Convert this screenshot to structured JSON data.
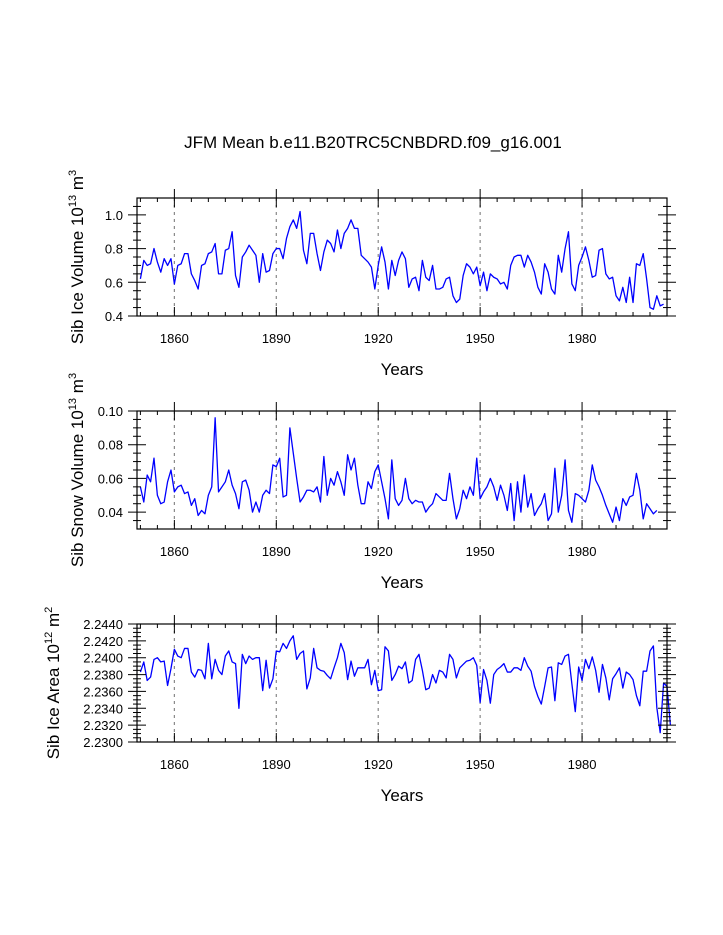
{
  "title": "JFM Mean b.e11.B20TRC5CNBDRD.f09_g16.001",
  "line_color": "#0000ff",
  "grid_color": "#888888",
  "chart_data": [
    {
      "type": "line",
      "ylabel_main": "Sib Ice Volume 10",
      "ylabel_exp": "13",
      "ylabel_unit": " m",
      "ylabel_unit_exp": "3",
      "xlabel": "Years",
      "xlim": [
        1849,
        2005
      ],
      "ylim": [
        0.4,
        1.1
      ],
      "yticks": [
        0.4,
        0.6,
        0.8,
        1.0
      ],
      "ytick_labels": [
        "0.4",
        "0.6",
        "0.8",
        "1.0"
      ],
      "yminor": [
        0.45,
        0.5,
        0.55,
        0.65,
        0.7,
        0.75,
        0.85,
        0.9,
        0.95,
        1.05
      ],
      "xticks": [
        1860,
        1890,
        1920,
        1950,
        1980
      ],
      "xtick_labels": [
        "1860",
        "1890",
        "1920",
        "1950",
        "1980"
      ],
      "grid_x": [
        1860,
        1890,
        1920,
        1950,
        1980
      ],
      "x_start": 1850,
      "values": [
        0.62,
        0.73,
        0.7,
        0.71,
        0.8,
        0.72,
        0.66,
        0.74,
        0.7,
        0.74,
        0.59,
        0.7,
        0.71,
        0.77,
        0.77,
        0.65,
        0.61,
        0.56,
        0.7,
        0.71,
        0.77,
        0.78,
        0.83,
        0.65,
        0.65,
        0.79,
        0.8,
        0.9,
        0.64,
        0.57,
        0.75,
        0.78,
        0.82,
        0.79,
        0.76,
        0.6,
        0.77,
        0.66,
        0.67,
        0.77,
        0.8,
        0.8,
        0.74,
        0.86,
        0.93,
        0.97,
        0.92,
        1.02,
        0.79,
        0.71,
        0.89,
        0.89,
        0.77,
        0.67,
        0.78,
        0.85,
        0.83,
        0.78,
        0.91,
        0.8,
        0.89,
        0.92,
        0.97,
        0.92,
        0.92,
        0.76,
        0.74,
        0.72,
        0.69,
        0.56,
        0.7,
        0.81,
        0.72,
        0.56,
        0.73,
        0.64,
        0.73,
        0.78,
        0.74,
        0.57,
        0.62,
        0.63,
        0.55,
        0.73,
        0.63,
        0.61,
        0.7,
        0.56,
        0.56,
        0.57,
        0.62,
        0.63,
        0.52,
        0.48,
        0.5,
        0.64,
        0.71,
        0.69,
        0.65,
        0.69,
        0.58,
        0.66,
        0.55,
        0.65,
        0.63,
        0.62,
        0.59,
        0.6,
        0.56,
        0.7,
        0.75,
        0.76,
        0.76,
        0.69,
        0.76,
        0.72,
        0.66,
        0.57,
        0.53,
        0.71,
        0.66,
        0.56,
        0.53,
        0.76,
        0.66,
        0.8,
        0.9,
        0.59,
        0.55,
        0.7,
        0.75,
        0.81,
        0.73,
        0.63,
        0.64,
        0.79,
        0.8,
        0.65,
        0.62,
        0.63,
        0.52,
        0.49,
        0.57,
        0.48,
        0.63,
        0.48,
        0.71,
        0.7,
        0.77,
        0.62,
        0.45,
        0.44,
        0.52,
        0.46,
        0.47
      ]
    },
    {
      "type": "line",
      "ylabel_main": "Sib Snow Volume 10",
      "ylabel_exp": "13",
      "ylabel_unit": " m",
      "ylabel_unit_exp": "3",
      "xlabel": "Years",
      "xlim": [
        1849,
        2005
      ],
      "ylim": [
        0.03,
        0.1
      ],
      "yticks": [
        0.04,
        0.06,
        0.08,
        0.1
      ],
      "ytick_labels": [
        "0.04",
        "0.06",
        "0.08",
        "0.10"
      ],
      "yminor": [
        0.035,
        0.045,
        0.05,
        0.055,
        0.065,
        0.07,
        0.075,
        0.085,
        0.09,
        0.095
      ],
      "xticks": [
        1860,
        1890,
        1920,
        1950,
        1980
      ],
      "xtick_labels": [
        "1860",
        "1890",
        "1920",
        "1950",
        "1980"
      ],
      "grid_x": [
        1860,
        1890,
        1920,
        1950,
        1980
      ],
      "x_start": 1850,
      "values": [
        0.055,
        0.046,
        0.062,
        0.058,
        0.072,
        0.05,
        0.045,
        0.046,
        0.058,
        0.065,
        0.052,
        0.055,
        0.056,
        0.051,
        0.052,
        0.044,
        0.048,
        0.038,
        0.041,
        0.039,
        0.05,
        0.055,
        0.096,
        0.052,
        0.055,
        0.058,
        0.065,
        0.056,
        0.051,
        0.042,
        0.058,
        0.059,
        0.053,
        0.04,
        0.046,
        0.04,
        0.05,
        0.053,
        0.051,
        0.068,
        0.067,
        0.072,
        0.049,
        0.05,
        0.09,
        0.075,
        0.06,
        0.046,
        0.049,
        0.053,
        0.053,
        0.052,
        0.055,
        0.046,
        0.073,
        0.05,
        0.06,
        0.056,
        0.064,
        0.058,
        0.05,
        0.074,
        0.065,
        0.072,
        0.056,
        0.045,
        0.045,
        0.058,
        0.054,
        0.064,
        0.068,
        0.058,
        0.048,
        0.036,
        0.071,
        0.048,
        0.044,
        0.047,
        0.06,
        0.048,
        0.045,
        0.047,
        0.046,
        0.046,
        0.04,
        0.043,
        0.045,
        0.051,
        0.049,
        0.047,
        0.047,
        0.063,
        0.048,
        0.036,
        0.042,
        0.053,
        0.048,
        0.055,
        0.05,
        0.072,
        0.048,
        0.052,
        0.055,
        0.06,
        0.055,
        0.047,
        0.056,
        0.05,
        0.041,
        0.057,
        0.035,
        0.058,
        0.04,
        0.062,
        0.043,
        0.051,
        0.038,
        0.042,
        0.045,
        0.051,
        0.035,
        0.039,
        0.066,
        0.04,
        0.05,
        0.071,
        0.041,
        0.034,
        0.051,
        0.05,
        0.048,
        0.046,
        0.053,
        0.068,
        0.059,
        0.055,
        0.05,
        0.044,
        0.039,
        0.034,
        0.043,
        0.035,
        0.048,
        0.044,
        0.049,
        0.05,
        0.063,
        0.053,
        0.036,
        0.045,
        0.042,
        0.039,
        0.041
      ]
    },
    {
      "type": "line",
      "ylabel_main": "Sib Ice Area 10",
      "ylabel_exp": "12",
      "ylabel_unit": " m",
      "ylabel_unit_exp": "2",
      "xlabel": "Years",
      "xlim": [
        1849,
        2005
      ],
      "ylim": [
        2.23,
        2.244
      ],
      "yticks": [
        2.23,
        2.232,
        2.234,
        2.236,
        2.238,
        2.24,
        2.242,
        2.244
      ],
      "ytick_labels": [
        "2.2300",
        "2.2320",
        "2.2340",
        "2.2360",
        "2.2380",
        "2.2400",
        "2.2420",
        "2.2440"
      ],
      "yminor": [
        2.2305,
        2.231,
        2.2315,
        2.2325,
        2.233,
        2.2335,
        2.2345,
        2.235,
        2.2355,
        2.2365,
        2.237,
        2.2375,
        2.2385,
        2.239,
        2.2395,
        2.2405,
        2.241,
        2.2415,
        2.2425,
        2.243,
        2.2435
      ],
      "xticks": [
        1860,
        1890,
        1920,
        1950,
        1980
      ],
      "xtick_labels": [
        "1860",
        "1890",
        "1920",
        "1950",
        "1980"
      ],
      "grid_x": [
        1860,
        1890,
        1920,
        1950,
        1980
      ],
      "x_start": 1850,
      "values": [
        2.2383,
        2.2395,
        2.2373,
        2.2377,
        2.2398,
        2.24,
        2.2395,
        2.2396,
        2.2367,
        2.2387,
        2.241,
        2.2402,
        2.24,
        2.2411,
        2.2411,
        2.2383,
        2.2377,
        2.2386,
        2.2385,
        2.2375,
        2.2417,
        2.2375,
        2.2398,
        2.2385,
        2.238,
        2.2402,
        2.2408,
        2.2395,
        2.2393,
        2.234,
        2.2404,
        2.2393,
        2.2402,
        2.2398,
        2.24,
        2.24,
        2.2361,
        2.2397,
        2.2364,
        2.2375,
        2.2408,
        2.2407,
        2.2417,
        2.2411,
        2.242,
        2.2426,
        2.2398,
        2.2405,
        2.2408,
        2.2363,
        2.2376,
        2.2411,
        2.2388,
        2.2385,
        2.2384,
        2.2379,
        2.2375,
        2.2388,
        2.24,
        2.2417,
        2.2406,
        2.2374,
        2.2396,
        2.2378,
        2.2388,
        2.2388,
        2.2388,
        2.2398,
        2.2368,
        2.2385,
        2.2361,
        2.2362,
        2.2413,
        2.2408,
        2.2373,
        2.238,
        2.239,
        2.2387,
        2.2395,
        2.237,
        2.2373,
        2.2398,
        2.2404,
        2.2385,
        2.2362,
        2.2364,
        2.238,
        2.237,
        2.2385,
        2.2383,
        2.2376,
        2.2404,
        2.2398,
        2.2376,
        2.2388,
        2.2392,
        2.2396,
        2.2397,
        2.24,
        2.2391,
        2.2347,
        2.2386,
        2.2373,
        2.2346,
        2.238,
        2.2386,
        2.2389,
        2.2393,
        2.2383,
        2.2383,
        2.2388,
        2.2388,
        2.2385,
        2.24,
        2.239,
        2.2384,
        2.2366,
        2.2354,
        2.2345,
        2.2366,
        2.2388,
        2.2389,
        2.2349,
        2.2394,
        2.2392,
        2.2402,
        2.2404,
        2.2369,
        2.2336,
        2.2389,
        2.2373,
        2.2398,
        2.2387,
        2.2401,
        2.2385,
        2.2359,
        2.2392,
        2.2376,
        2.235,
        2.2375,
        2.2381,
        2.2388,
        2.2364,
        2.2383,
        2.238,
        2.2374,
        2.2355,
        2.2343,
        2.2384,
        2.2384,
        2.2408,
        2.2414,
        2.2341,
        2.2311,
        2.237,
        2.2366,
        2.232
      ]
    }
  ]
}
